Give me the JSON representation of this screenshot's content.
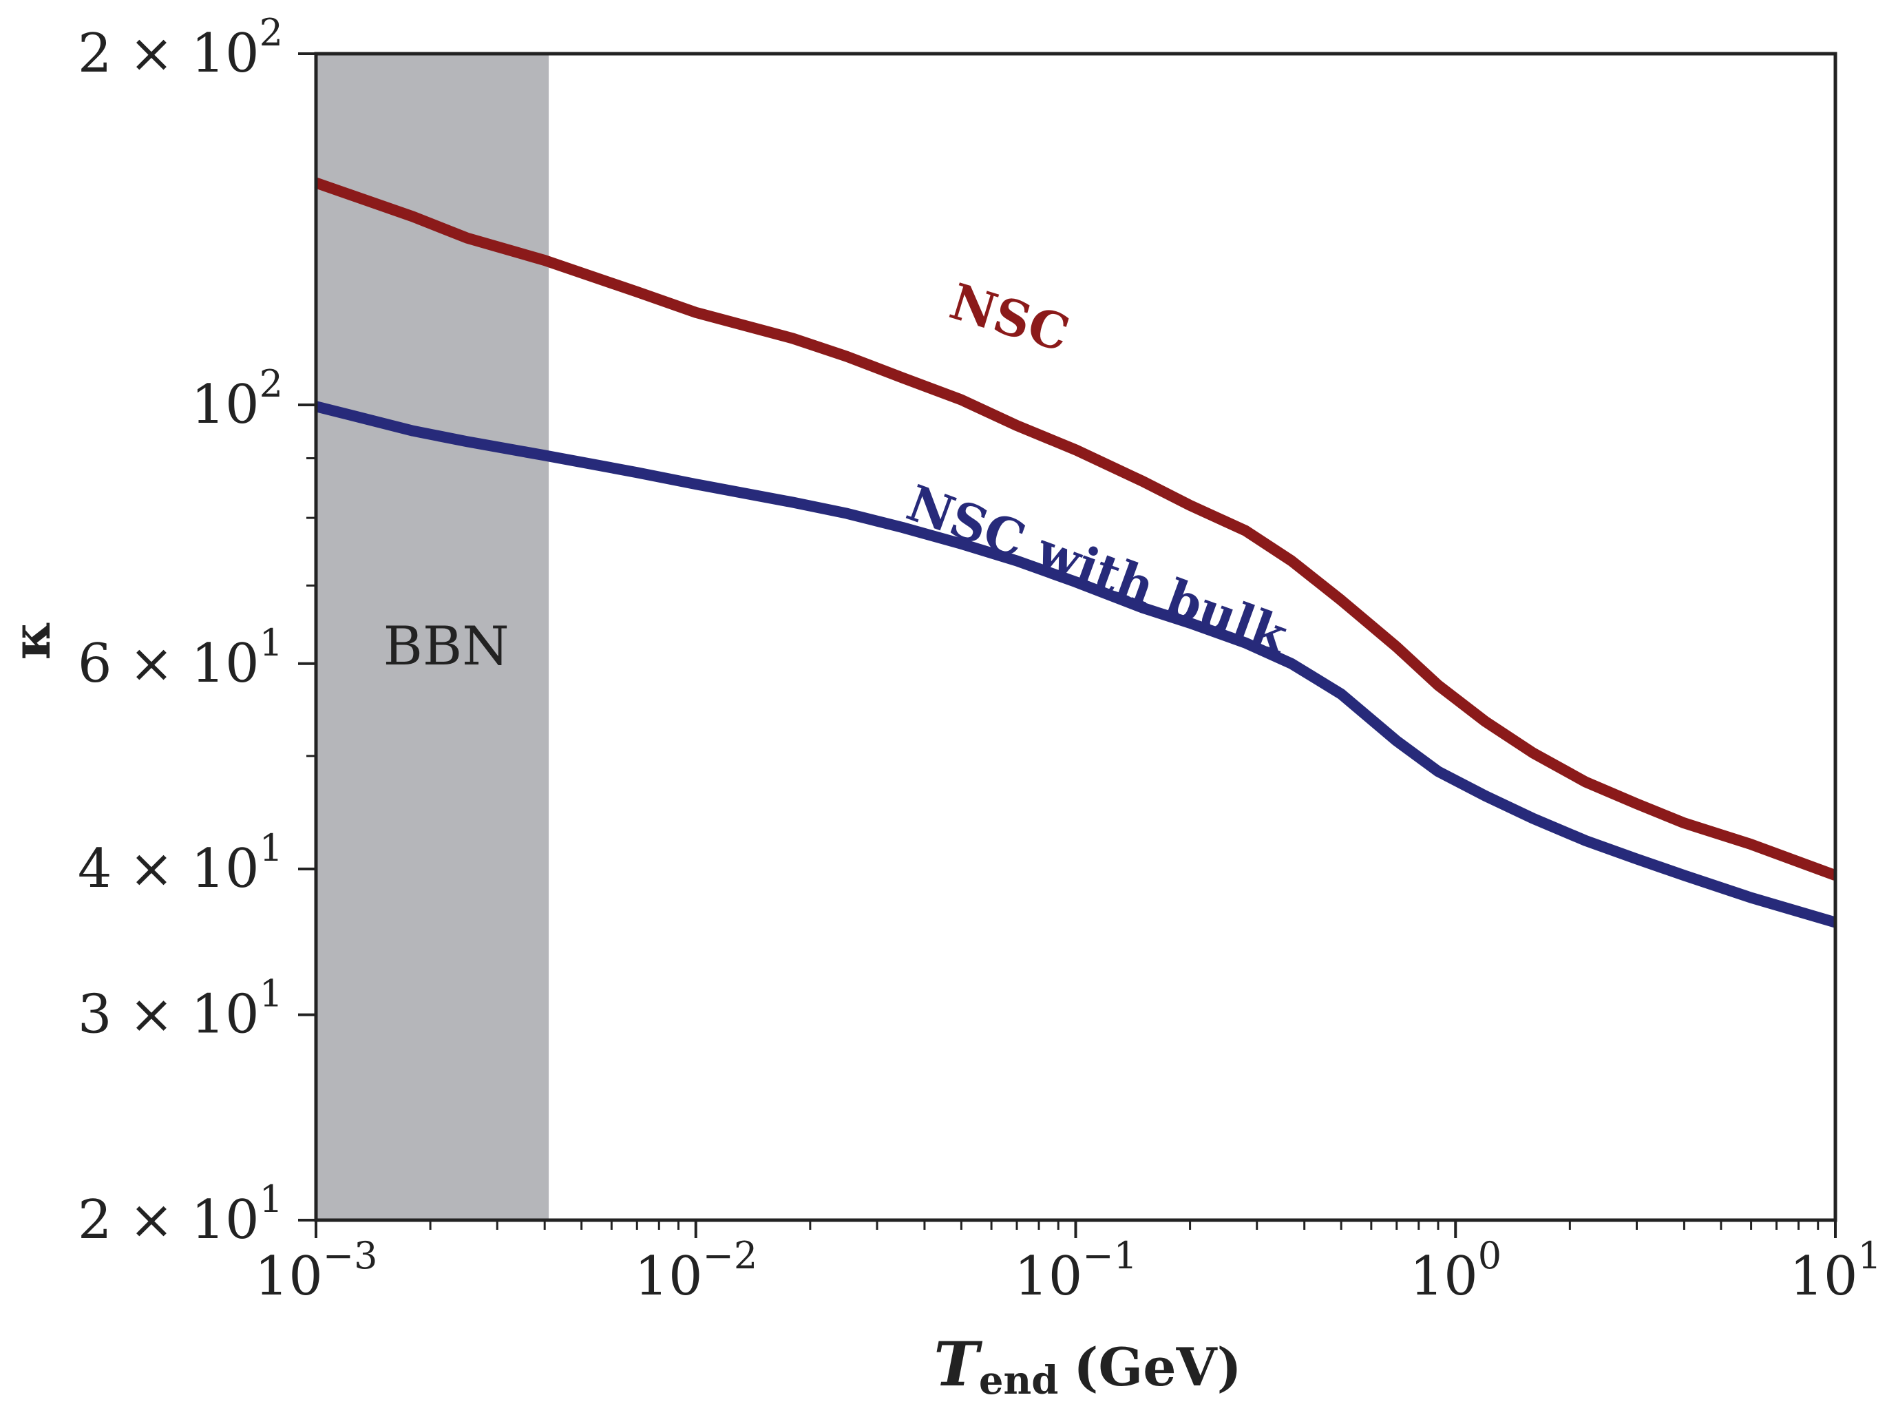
{
  "chart_data": {
    "type": "line",
    "title": "",
    "xlabel": {
      "main": "T",
      "sub": "end",
      "unit": "(GeV)"
    },
    "ylabel": "κ",
    "xscale": "log",
    "yscale": "log",
    "xlim": [
      0.001,
      10
    ],
    "ylim": [
      20,
      200
    ],
    "x_ticks": [
      {
        "value": 0.001,
        "base": "10",
        "exp": "−3"
      },
      {
        "value": 0.01,
        "base": "10",
        "exp": "−2"
      },
      {
        "value": 0.1,
        "base": "10",
        "exp": "−1"
      },
      {
        "value": 1,
        "base": "10",
        "exp": "0"
      },
      {
        "value": 10,
        "base": "10",
        "exp": "1"
      }
    ],
    "y_ticks": [
      {
        "value": 20,
        "mant": "2 × ",
        "base": "10",
        "exp": "1"
      },
      {
        "value": 30,
        "mant": "3 × ",
        "base": "10",
        "exp": "1"
      },
      {
        "value": 40,
        "mant": "4 × ",
        "base": "10",
        "exp": "1"
      },
      {
        "value": 60,
        "mant": "6 × ",
        "base": "10",
        "exp": "1"
      },
      {
        "value": 100,
        "mant": "",
        "base": "10",
        "exp": "2"
      },
      {
        "value": 200,
        "mant": "2 × ",
        "base": "10",
        "exp": "2"
      }
    ],
    "shaded_region": {
      "label": "BBN",
      "x_from": 0.001,
      "x_to": 0.0041,
      "color": "#b5b6ba"
    },
    "series": [
      {
        "name": "NSC",
        "color": "#8b1a1a",
        "label_anchor": {
          "x": 0.065,
          "y": 115
        },
        "x": [
          0.001,
          0.0018,
          0.0025,
          0.004,
          0.007,
          0.01,
          0.018,
          0.025,
          0.035,
          0.05,
          0.07,
          0.1,
          0.15,
          0.2,
          0.28,
          0.37,
          0.5,
          0.7,
          0.9,
          1.2,
          1.6,
          2.2,
          3,
          4,
          6,
          10
        ],
        "values": [
          155,
          145,
          139,
          133,
          125,
          120,
          114,
          110,
          105.5,
          101,
          96,
          91.5,
          86,
          82,
          78,
          73.5,
          68,
          62,
          57.5,
          53.5,
          50.3,
          47.5,
          45.5,
          43.8,
          42,
          39.5
        ]
      },
      {
        "name": "NSC with bulk",
        "color": "#272a7a",
        "label_anchor": {
          "x": 0.11,
          "y": 70
        },
        "x": [
          0.001,
          0.0018,
          0.0025,
          0.004,
          0.007,
          0.01,
          0.018,
          0.025,
          0.035,
          0.05,
          0.07,
          0.1,
          0.15,
          0.2,
          0.28,
          0.37,
          0.5,
          0.7,
          0.9,
          1.2,
          1.6,
          2.2,
          3,
          4,
          6,
          10
        ],
        "values": [
          99.7,
          95,
          93,
          90.5,
          87.5,
          85.5,
          82.5,
          80.7,
          78.5,
          76,
          73.5,
          70.5,
          67,
          65,
          62.5,
          60,
          56.5,
          51.5,
          48.5,
          46.2,
          44.2,
          42.3,
          40.8,
          39.5,
          37.8,
          36
        ]
      }
    ]
  }
}
